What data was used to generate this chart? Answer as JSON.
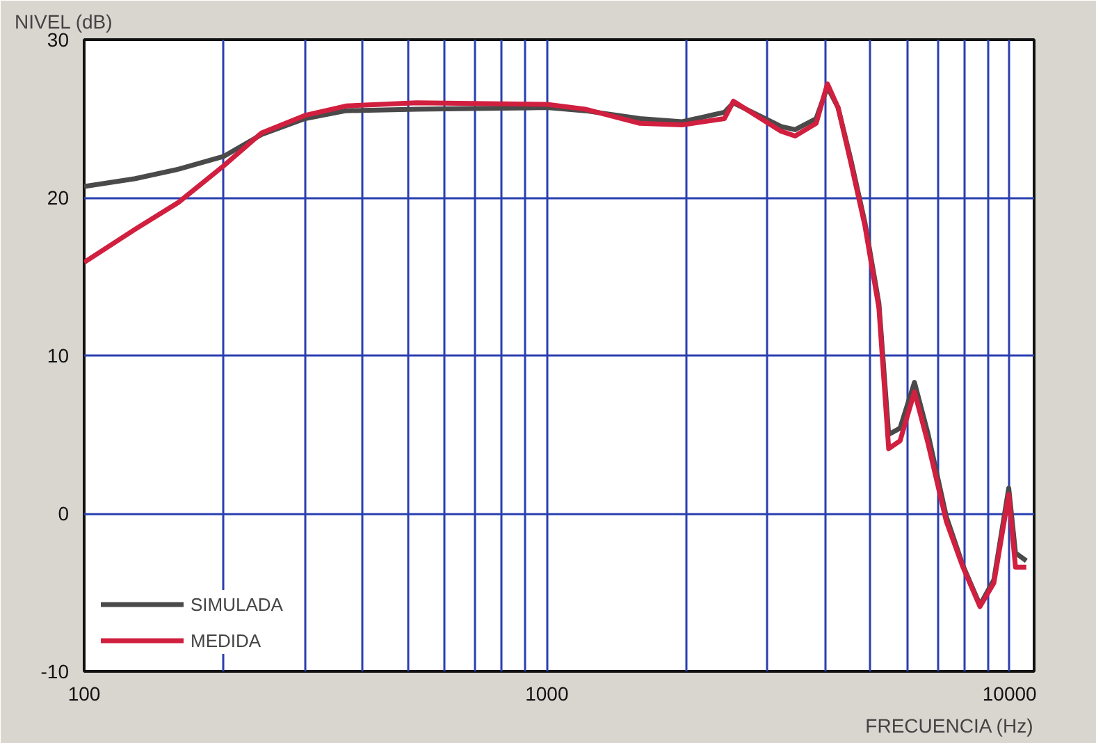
{
  "chart_data": {
    "type": "line",
    "xlabel": "FRECUENCIA (Hz)",
    "ylabel": "NIVEL (dB)",
    "log": "x",
    "xlim": [
      100,
      11300
    ],
    "ylim": [
      -10,
      30
    ],
    "xticks": [
      100,
      {
        "value": 200,
        "label": null
      },
      {
        "value": 300,
        "label": null
      },
      {
        "value": 400,
        "label": null
      },
      {
        "value": 500,
        "label": null
      },
      {
        "value": 600,
        "label": null
      },
      {
        "value": 700,
        "label": null
      },
      {
        "value": 800,
        "label": null
      },
      {
        "value": 900,
        "label": null
      },
      1000,
      {
        "value": 2000,
        "label": null
      },
      {
        "value": 3000,
        "label": null
      },
      {
        "value": 4000,
        "label": null
      },
      {
        "value": 5000,
        "label": null
      },
      {
        "value": 6000,
        "label": null
      },
      {
        "value": 7000,
        "label": null
      },
      {
        "value": 8000,
        "label": null
      },
      {
        "value": 9000,
        "label": null
      },
      10000
    ],
    "yticks": [
      -10,
      0,
      10,
      20,
      30
    ],
    "grid": true,
    "legend": "bottom left",
    "series": [
      {
        "name": "SIMULADA",
        "color": "#4a4a4a",
        "x": [
          100,
          129,
          160,
          200,
          242,
          300,
          368,
          523,
          1000,
          1210,
          1590,
          1960,
          2420,
          2530,
          3210,
          3440,
          3820,
          4040,
          4260,
          4540,
          4870,
          5220,
          5480,
          5800,
          6230,
          6670,
          7300,
          7930,
          8630,
          9250,
          9960,
          10300,
          10870
        ],
        "values": [
          20.7,
          21.2,
          21.8,
          22.6,
          24.0,
          25.0,
          25.5,
          25.6,
          25.7,
          25.5,
          25.0,
          24.8,
          25.4,
          26.0,
          24.5,
          24.3,
          25.0,
          27.0,
          25.7,
          22.4,
          18.4,
          13.3,
          5.0,
          5.4,
          8.3,
          5.0,
          -0.2,
          -3.3,
          -5.8,
          -4.2,
          1.6,
          -2.5,
          -3.0
        ]
      },
      {
        "name": "MEDIDA",
        "color": "#d11f3f",
        "x": [
          100,
          129,
          160,
          200,
          242,
          300,
          368,
          523,
          1000,
          1210,
          1590,
          1960,
          2420,
          2530,
          3210,
          3440,
          3820,
          4040,
          4260,
          4540,
          4870,
          5220,
          5480,
          5800,
          6230,
          6670,
          7300,
          7930,
          8630,
          9250,
          9960,
          10300,
          10870
        ],
        "values": [
          15.9,
          18.0,
          19.7,
          22.0,
          24.1,
          25.2,
          25.8,
          26.0,
          25.9,
          25.6,
          24.7,
          24.6,
          25.0,
          26.1,
          24.2,
          23.9,
          24.7,
          27.2,
          25.7,
          22.2,
          18.2,
          13.0,
          4.1,
          4.6,
          7.7,
          4.4,
          -0.5,
          -3.4,
          -5.9,
          -4.4,
          1.2,
          -3.4,
          -3.4
        ]
      }
    ]
  }
}
